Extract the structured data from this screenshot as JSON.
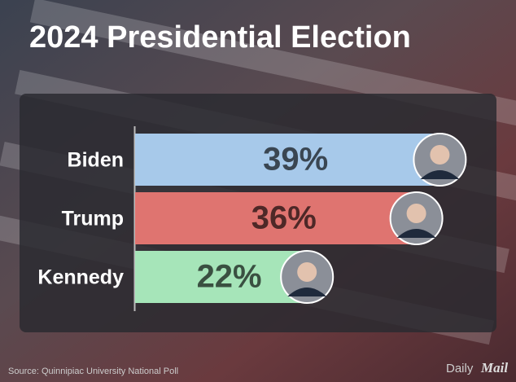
{
  "chart_data": {
    "type": "bar",
    "orientation": "horizontal",
    "title": "2024 Presidential Election",
    "categories": [
      "Biden",
      "Trump",
      "Kennedy"
    ],
    "values": [
      39,
      36,
      22
    ],
    "value_labels": [
      "39%",
      "36%",
      "22%"
    ],
    "colors": [
      "#a7c9ea",
      "#df7470",
      "#a6e5b9"
    ],
    "source": "Source: Quinnipiac University National Poll",
    "logo": [
      "Daily",
      "Mail"
    ]
  }
}
